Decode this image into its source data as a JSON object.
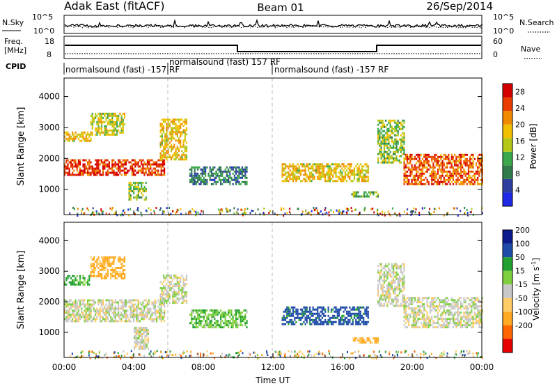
{
  "header": {
    "radar": "Adak East (fitACF)",
    "beam": "Beam 01",
    "date": "26/Sep/2014"
  },
  "panels": {
    "noise": {
      "left_label": "N.Sky",
      "right_label": "N.Search",
      "ticks": [
        "10^5",
        "10^0"
      ]
    },
    "freq": {
      "left_label_1": "Freq.",
      "left_label_2": "[MHz]",
      "right_label": "Nave",
      "left_ticks": [
        "18",
        "8"
      ],
      "right_ticks": [
        "60",
        "0"
      ]
    },
    "cpid": {
      "label": "CPID",
      "modes": [
        "normalsound (fast) -157 RF",
        "normalsound (fast) 157 RF",
        "normalsound (fast) -157 RF"
      ]
    }
  },
  "colors": {
    "power": [
      "#1f29e6",
      "#2e3f9e",
      "#2f7b4c",
      "#3aa84a",
      "#b5c818",
      "#f0c000",
      "#f08a00",
      "#e83c00",
      "#d40000"
    ],
    "velocity": [
      "#e80000",
      "#ff6600",
      "#ffaa22",
      "#ffcc66",
      "#c8c8c8",
      "#7fd040",
      "#22a030",
      "#1f4ca8",
      "#0c1c8c"
    ]
  },
  "chart_data": [
    {
      "type": "heatmap",
      "name": "power",
      "ylabel": "Slant Range [km]",
      "xlim": [
        0,
        24
      ],
      "ylim": [
        180,
        4600
      ],
      "yticks": [
        "1000",
        "2000",
        "3000",
        "4000"
      ],
      "colorbar": {
        "title": "Power [dB]",
        "ticks": [
          "4",
          "8",
          "12",
          "16",
          "20",
          "24",
          "28"
        ],
        "range": [
          0,
          30
        ]
      },
      "echo_bands": [
        {
          "t0": 0.0,
          "t1": 5.8,
          "r0": 1500,
          "r1": 2000,
          "level": 26
        },
        {
          "t0": 0.0,
          "t1": 1.5,
          "r0": 2600,
          "r1": 2900,
          "level": 18
        },
        {
          "t0": 1.5,
          "t1": 3.5,
          "r0": 2800,
          "r1": 3500,
          "level": 16
        },
        {
          "t0": 5.5,
          "t1": 7.0,
          "r0": 2000,
          "r1": 3300,
          "level": 18
        },
        {
          "t0": 3.7,
          "t1": 4.7,
          "r0": 700,
          "r1": 1300,
          "level": 14
        },
        {
          "t0": 7.2,
          "t1": 10.5,
          "r0": 1200,
          "r1": 1800,
          "level": 8
        },
        {
          "t0": 12.5,
          "t1": 17.5,
          "r0": 1300,
          "r1": 1900,
          "level": 18
        },
        {
          "t0": 16.5,
          "t1": 18.0,
          "r0": 800,
          "r1": 1000,
          "level": 12
        },
        {
          "t0": 18.0,
          "t1": 19.5,
          "r0": 1900,
          "r1": 3300,
          "level": 14
        },
        {
          "t0": 19.5,
          "t1": 24.0,
          "r0": 1200,
          "r1": 2200,
          "level": 24
        }
      ]
    },
    {
      "type": "heatmap",
      "name": "velocity",
      "ylabel": "Slant Range [km]",
      "xlabel": "Time UT",
      "xlim": [
        0,
        24
      ],
      "ylim": [
        180,
        4600
      ],
      "xticks": [
        "00:00",
        "04:00",
        "08:00",
        "12:00",
        "16:00",
        "20:00",
        "00:00"
      ],
      "yticks": [
        "1000",
        "2000",
        "3000",
        "4000"
      ],
      "colorbar": {
        "title": "Velocity [m s",
        "title_sup": "-1",
        "title_end": "]",
        "ticks": [
          "200",
          "100",
          "50",
          "15",
          "-15",
          "-50",
          "-100",
          "-200"
        ]
      },
      "echo_bands": [
        {
          "t0": 0.0,
          "t1": 5.8,
          "r0": 1400,
          "r1": 2100,
          "vel": 0
        },
        {
          "t0": 0.0,
          "t1": 1.5,
          "r0": 2600,
          "r1": 2900,
          "vel": 60
        },
        {
          "t0": 1.5,
          "t1": 3.5,
          "r0": 2800,
          "r1": 3500,
          "vel": -60
        },
        {
          "t0": 5.5,
          "t1": 7.0,
          "r0": 2000,
          "r1": 2900,
          "vel": 0
        },
        {
          "t0": 4.0,
          "t1": 4.8,
          "r0": 500,
          "r1": 1200,
          "vel": 0
        },
        {
          "t0": 7.2,
          "t1": 10.5,
          "r0": 1200,
          "r1": 1800,
          "vel": 40
        },
        {
          "t0": 12.5,
          "t1": 17.5,
          "r0": 1300,
          "r1": 1900,
          "vel": 120
        },
        {
          "t0": 16.5,
          "t1": 18.0,
          "r0": 700,
          "r1": 900,
          "vel": -60
        },
        {
          "t0": 18.0,
          "t1": 19.5,
          "r0": 1900,
          "r1": 3300,
          "vel": 0
        },
        {
          "t0": 19.5,
          "t1": 24.0,
          "r0": 1200,
          "r1": 2200,
          "vel": 0
        }
      ]
    }
  ]
}
